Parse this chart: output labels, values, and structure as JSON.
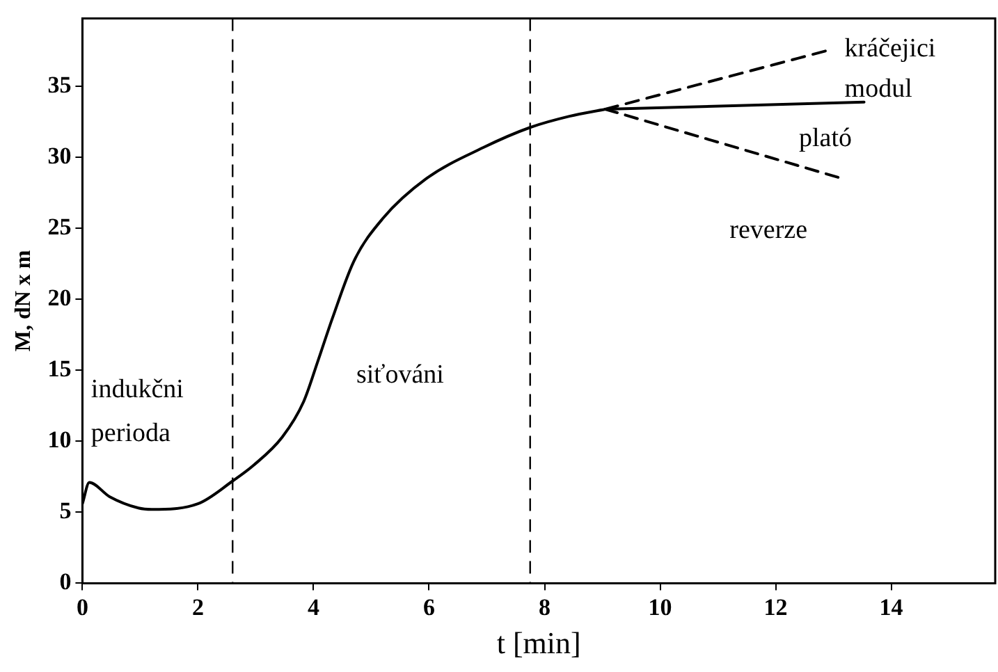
{
  "chart_data": {
    "type": "line",
    "xlabel": "t [min]",
    "ylabel": "M, dN x m",
    "xlim": [
      0,
      15.8
    ],
    "xticks": [
      0,
      2,
      4,
      6,
      8,
      10,
      12,
      14
    ],
    "ylim": [
      0,
      39.8
    ],
    "yticks": [
      0,
      5,
      10,
      15,
      20,
      25,
      30,
      35
    ],
    "grid": false,
    "legend": false,
    "marker": "none",
    "series": [
      {
        "color": "#000000",
        "line_style": "solid",
        "x": [
          0,
          0.12,
          0.47,
          0.97,
          1.2,
          2,
          2.6,
          2.96,
          3.46,
          3.83,
          4.08,
          4.33,
          4.7,
          5.2,
          5.95,
          6.94,
          7.74,
          8.43,
          9.05
        ],
        "values": [
          5.6,
          7.1,
          6.1,
          5.3,
          5.2,
          5.6,
          7.2,
          8.3,
          10.3,
          12.8,
          15.7,
          18.7,
          22.7,
          25.7,
          28.5,
          30.7,
          32.1,
          32.9,
          33.4
        ]
      },
      {
        "color": "#000000",
        "line_style": "dashed",
        "x": [
          9.05,
          12.86
        ],
        "values": [
          33.4,
          37.5
        ]
      },
      {
        "color": "#000000",
        "line_style": "solid",
        "x": [
          9.05,
          13.53
        ],
        "values": [
          33.4,
          33.9
        ]
      },
      {
        "color": "#000000",
        "line_style": "dashed",
        "x": [
          9.05,
          13.08
        ],
        "values": [
          33.4,
          28.6
        ]
      }
    ],
    "ref_lines": [
      {
        "axis": "x",
        "value": 2.6,
        "line_style": "dashed",
        "color": "#000000"
      },
      {
        "axis": "x",
        "value": 7.75,
        "line_style": "dashed",
        "color": "#000000"
      }
    ],
    "annotations": [
      "indukčni",
      "perioda",
      "siťováni",
      "kráčejici",
      "modul",
      "plató",
      "reverze"
    ]
  }
}
